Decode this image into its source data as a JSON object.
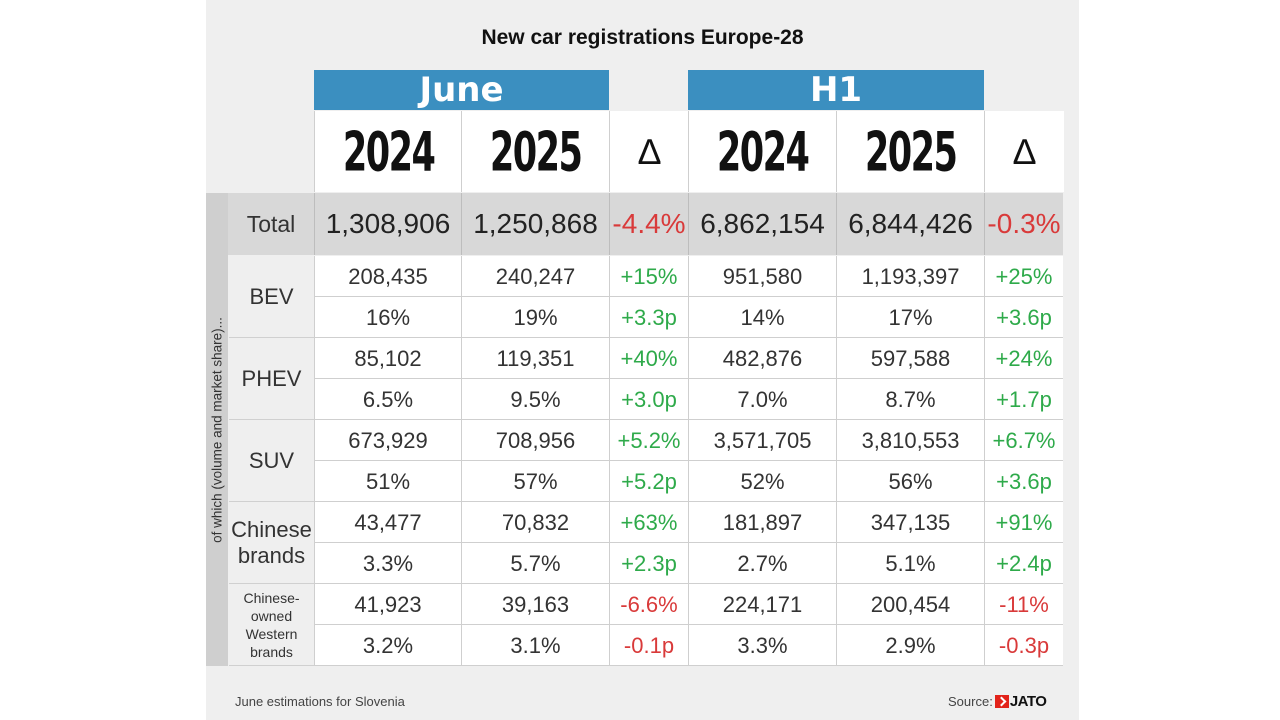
{
  "chart_data": {
    "type": "table",
    "title": "New car registrations Europe-28",
    "groups": [
      "June",
      "H1"
    ],
    "columns": [
      "2024",
      "2025",
      "∆",
      "2024",
      "2025",
      "∆"
    ],
    "side_label": "of which (volume and market share)...",
    "total": {
      "label": "Total",
      "values": [
        "1,308,906",
        "1,250,868",
        "-4.4%",
        "6,862,154",
        "6,844,426",
        "-0.3%"
      ]
    },
    "categories": [
      {
        "label": "BEV",
        "rows": [
          [
            "208,435",
            "240,247",
            "+15%",
            "951,580",
            "1,193,397",
            "+25%"
          ],
          [
            "16%",
            "19%",
            "+3.3p",
            "14%",
            "17%",
            "+3.6p"
          ]
        ]
      },
      {
        "label": "PHEV",
        "rows": [
          [
            "85,102",
            "119,351",
            "+40%",
            "482,876",
            "597,588",
            "+24%"
          ],
          [
            "6.5%",
            "9.5%",
            "+3.0p",
            "7.0%",
            "8.7%",
            "+1.7p"
          ]
        ]
      },
      {
        "label": "SUV",
        "rows": [
          [
            "673,929",
            "708,956",
            "+5.2%",
            "3,571,705",
            "3,810,553",
            "+6.7%"
          ],
          [
            "51%",
            "57%",
            "+5.2p",
            "52%",
            "56%",
            "+3.6p"
          ]
        ]
      },
      {
        "label": "Chinese brands",
        "label_lines": [
          "Chinese",
          "brands"
        ],
        "rows": [
          [
            "43,477",
            "70,832",
            "+63%",
            "181,897",
            "347,135",
            "+91%"
          ],
          [
            "3.3%",
            "5.7%",
            "+2.3p",
            "2.7%",
            "5.1%",
            "+2.4p"
          ]
        ]
      },
      {
        "label": "Chinese-owned Western brands",
        "label_lines": [
          "Chinese-",
          "owned",
          "Western",
          "brands"
        ],
        "rows": [
          [
            "41,923",
            "39,163",
            "-6.6%",
            "224,171",
            "200,454",
            "-11%"
          ],
          [
            "3.2%",
            "3.1%",
            "-0.1p",
            "3.3%",
            "2.9%",
            "-0.3p"
          ]
        ]
      }
    ],
    "footnote": "June estimations for Slovenia",
    "source_label": "Source:",
    "source_brand": "JATO"
  },
  "colors": {
    "header_blue": "#3b8fc0",
    "positive": "#2eaa4a",
    "negative": "#d93a3a",
    "total_row": "#d8d8d8",
    "logo_red": "#e2231a"
  }
}
